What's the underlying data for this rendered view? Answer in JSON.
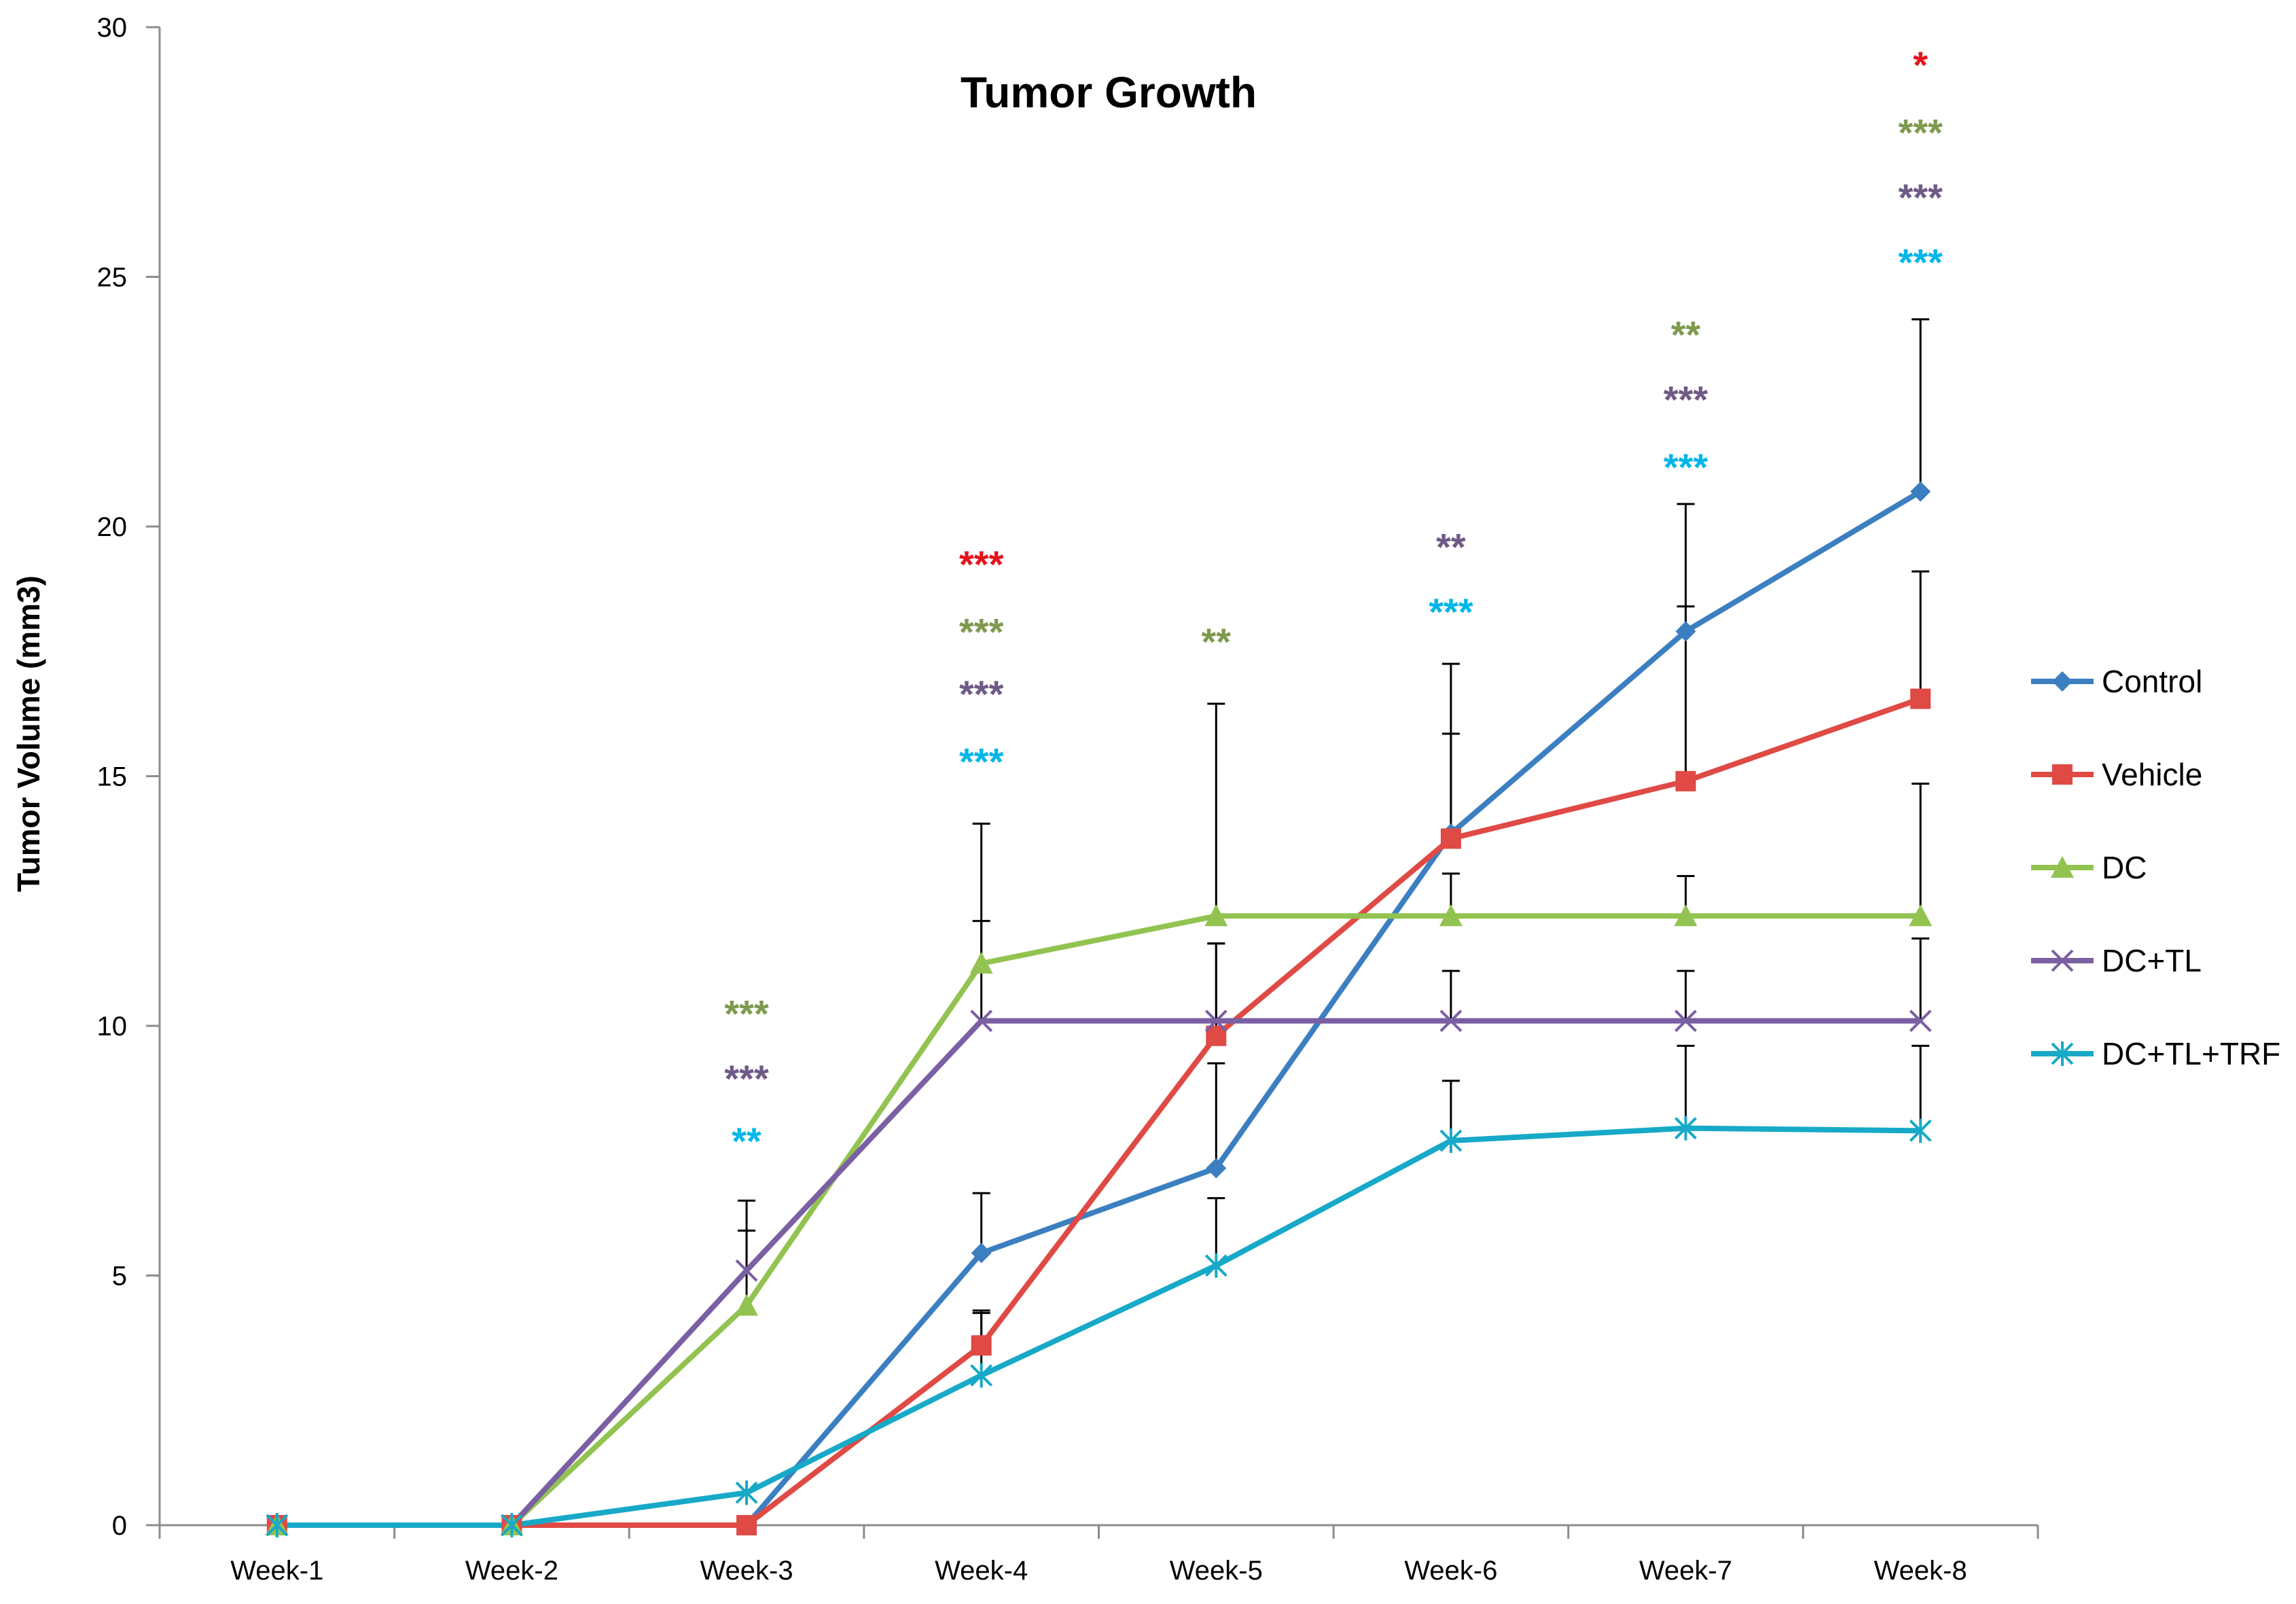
{
  "chart_data": {
    "type": "line",
    "title": "Tumor Growth",
    "xlabel": "",
    "ylabel": "Tumor Volume (mm3)",
    "ylim": [
      0,
      30
    ],
    "yticks": [
      0,
      5,
      10,
      15,
      20,
      25,
      30
    ],
    "grid": false,
    "legend_position": "right",
    "categories": [
      "Week-1",
      "Week-2",
      "Week-3",
      "Week-4",
      "Week-5",
      "Week-6",
      "Week-7",
      "Week-8"
    ],
    "series": [
      {
        "name": "Control",
        "color": "#3c7fc1",
        "marker": "diamond",
        "values": [
          0,
          0,
          0,
          5.45,
          7.15,
          13.85,
          17.9,
          20.7
        ],
        "error": [
          0,
          0,
          0,
          1.2,
          2.1,
          2.0,
          2.55,
          3.45
        ]
      },
      {
        "name": "Vehicle",
        "color": "#df4a45",
        "marker": "square",
        "values": [
          0,
          0,
          0,
          3.6,
          9.8,
          13.75,
          14.9,
          16.55
        ],
        "error": [
          0,
          0,
          0,
          0.65,
          1.85,
          3.5,
          3.5,
          2.55
        ]
      },
      {
        "name": "DC",
        "color": "#92c351",
        "marker": "triangle",
        "values": [
          0,
          0,
          4.4,
          11.25,
          12.2,
          12.2,
          12.2,
          12.2
        ],
        "error": [
          0,
          0,
          1.5,
          0.85,
          4.25,
          0.85,
          0.8,
          2.65
        ]
      },
      {
        "name": "DC+TL",
        "color": "#7b5fa3",
        "marker": "x",
        "values": [
          0,
          0,
          5.1,
          10.1,
          10.1,
          10.1,
          10.1,
          10.1
        ],
        "error": [
          0,
          0,
          1.4,
          3.95,
          1.55,
          1.0,
          1.0,
          1.65
        ]
      },
      {
        "name": "DC+TL+TRF",
        "color": "#17a9c7",
        "marker": "star",
        "values": [
          0,
          0,
          0.65,
          3.0,
          5.2,
          7.7,
          7.95,
          7.9
        ],
        "error": [
          0,
          0,
          0,
          1.3,
          1.35,
          1.2,
          1.65,
          1.7
        ]
      }
    ],
    "annotations": [
      {
        "category": "Week-3",
        "y": 10.25,
        "text": "***",
        "color": "#7e9a4e"
      },
      {
        "category": "Week-3",
        "y": 8.95,
        "text": "***",
        "color": "#6f5a86"
      },
      {
        "category": "Week-3",
        "y": 7.7,
        "text": "**",
        "color": "#00b6e8"
      },
      {
        "category": "Week-4",
        "y": 19.25,
        "text": "***",
        "color": "#e6121b"
      },
      {
        "category": "Week-4",
        "y": 17.9,
        "text": "***",
        "color": "#7e9a4e"
      },
      {
        "category": "Week-4",
        "y": 16.65,
        "text": "***",
        "color": "#6f5a86"
      },
      {
        "category": "Week-4",
        "y": 15.3,
        "text": "***",
        "color": "#00b6e8"
      },
      {
        "category": "Week-5",
        "y": 17.7,
        "text": "**",
        "color": "#7e9a4e"
      },
      {
        "category": "Week-6",
        "y": 19.6,
        "text": "**",
        "color": "#6f5a86"
      },
      {
        "category": "Week-6",
        "y": 18.3,
        "text": "***",
        "color": "#00b6e8"
      },
      {
        "category": "Week-7",
        "y": 23.85,
        "text": "**",
        "color": "#7e9a4e"
      },
      {
        "category": "Week-7",
        "y": 22.55,
        "text": "***",
        "color": "#6f5a86"
      },
      {
        "category": "Week-7",
        "y": 21.2,
        "text": "***",
        "color": "#00b6e8"
      },
      {
        "category": "Week-8",
        "y": 29.25,
        "text": "*",
        "color": "#e6121b"
      },
      {
        "category": "Week-8",
        "y": 27.9,
        "text": "***",
        "color": "#7e9a4e"
      },
      {
        "category": "Week-8",
        "y": 26.6,
        "text": "***",
        "color": "#6f5a86"
      },
      {
        "category": "Week-8",
        "y": 25.3,
        "text": "***",
        "color": "#00b6e8"
      }
    ]
  }
}
